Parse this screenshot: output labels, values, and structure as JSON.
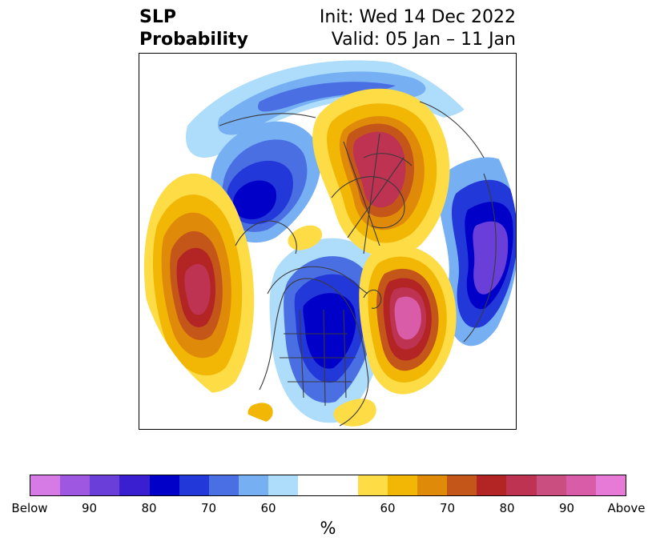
{
  "title": {
    "left_line1": "SLP",
    "left_line2": "Probability",
    "right_line1": "Init: Wed 14 Dec 2022",
    "right_line2": "Valid: 05 Jan – 11 Jan"
  },
  "colorbar": {
    "segments": [
      {
        "color": "#d67ae6"
      },
      {
        "color": "#9e57e0"
      },
      {
        "color": "#6a3ed9"
      },
      {
        "color": "#3a1fd0"
      },
      {
        "color": "#0000c8"
      },
      {
        "color": "#2338d8"
      },
      {
        "color": "#4a6fe3"
      },
      {
        "color": "#76b0f3"
      },
      {
        "color": "#aedcfb"
      },
      {
        "color": "#ffffff",
        "wide": true
      },
      {
        "color": "#fddc45"
      },
      {
        "color": "#f2b705"
      },
      {
        "color": "#e08a0a"
      },
      {
        "color": "#c5561a"
      },
      {
        "color": "#b32424"
      },
      {
        "color": "#be3252"
      },
      {
        "color": "#ca4f80"
      },
      {
        "color": "#d95ca8"
      },
      {
        "color": "#e77ad6"
      }
    ],
    "tick_labels": [
      "Below",
      "90",
      "80",
      "70",
      "60",
      "60",
      "70",
      "80",
      "90",
      "Above"
    ],
    "unit_label": "%"
  },
  "map": {
    "projection": "north-polar-stereographic",
    "colors": {
      "blue_light": "#aedcfb",
      "blue_mid": "#76b0f3",
      "blue": "#4a6fe3",
      "blue_strong": "#2338d8",
      "blue_deep": "#0000c8",
      "violet": "#6a3ed9",
      "yellow": "#fddc45",
      "gold": "#f2b705",
      "orange": "#e08a0a",
      "rust": "#c5561a",
      "red": "#b32424",
      "crimson": "#be3252",
      "rose": "#ca4f80",
      "pink": "#d95ca8"
    }
  }
}
